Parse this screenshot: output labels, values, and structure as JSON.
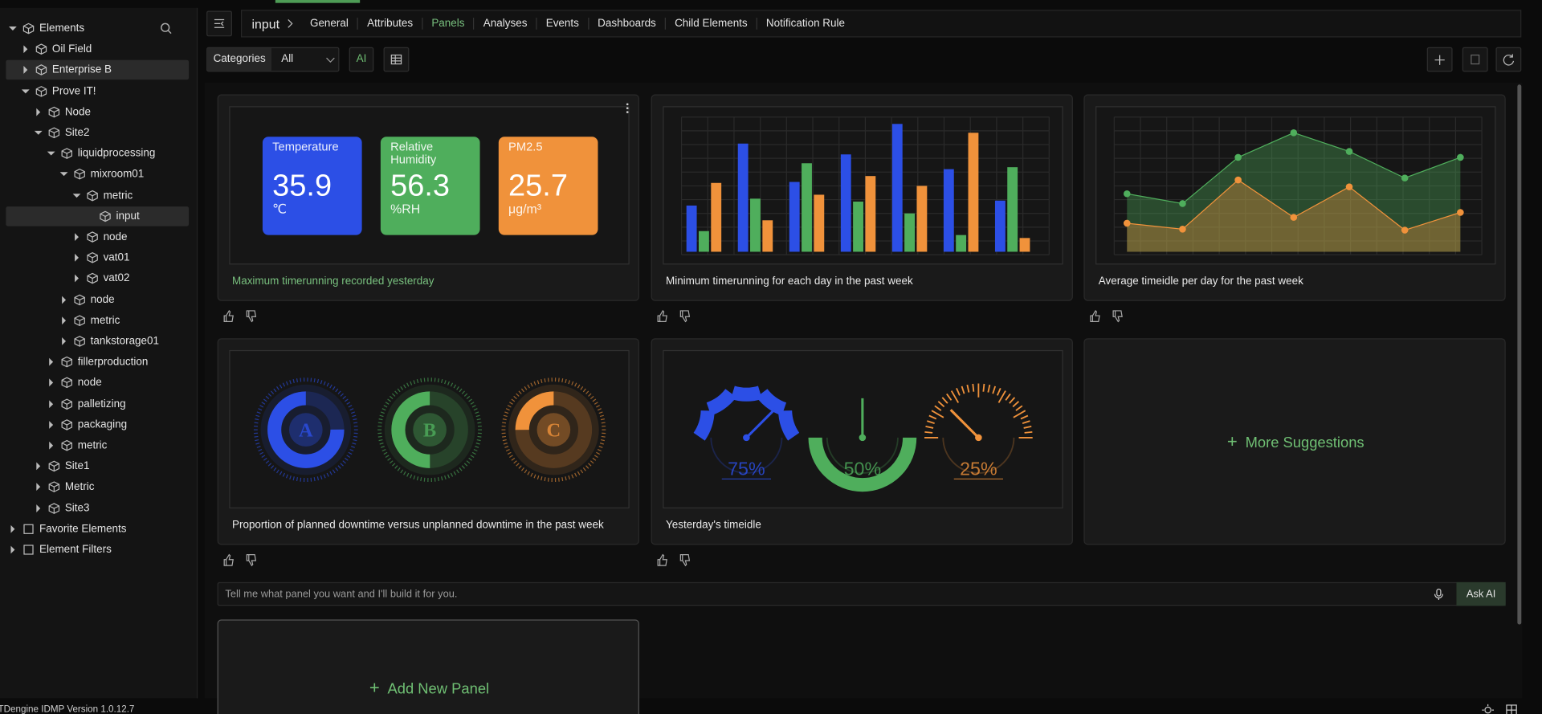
{
  "sidebar": {
    "items": [
      {
        "label": "Elements",
        "children": [
          {
            "label": "Oil Field",
            "children": []
          },
          {
            "label": "Enterprise B",
            "children": [],
            "highlighted": true
          },
          {
            "label": "Prove IT!",
            "children": [
              {
                "label": "Node",
                "children": []
              },
              {
                "label": "Site2",
                "children": [
                  {
                    "label": "liquidprocessing",
                    "children": [
                      {
                        "label": "mixroom01",
                        "children": [
                          {
                            "label": "metric",
                            "children": [
                              {
                                "label": "input",
                                "selected": true
                              }
                            ]
                          },
                          {
                            "label": "node",
                            "children": []
                          },
                          {
                            "label": "vat01",
                            "children": []
                          },
                          {
                            "label": "vat02",
                            "children": []
                          }
                        ]
                      },
                      {
                        "label": "node",
                        "children": []
                      },
                      {
                        "label": "metric",
                        "children": []
                      },
                      {
                        "label": "tankstorage01",
                        "children": []
                      }
                    ]
                  },
                  {
                    "label": "fillerproduction",
                    "children": []
                  },
                  {
                    "label": "node",
                    "children": []
                  },
                  {
                    "label": "palletizing",
                    "children": []
                  },
                  {
                    "label": "packaging",
                    "children": []
                  },
                  {
                    "label": "metric",
                    "children": []
                  }
                ]
              },
              {
                "label": "Site1",
                "children": []
              },
              {
                "label": "Metric",
                "children": []
              },
              {
                "label": "Site3",
                "children": []
              }
            ]
          }
        ]
      },
      {
        "label": "Favorite Elements",
        "children": []
      },
      {
        "label": "Element Filters",
        "children": []
      }
    ]
  },
  "breadcrumb": "input",
  "tabs": [
    "General",
    "Attributes",
    "Panels",
    "Analyses",
    "Events",
    "Dashboards",
    "Child Elements",
    "Notification Rule"
  ],
  "active_tab": 2,
  "toolbar": {
    "category_label": "Categories",
    "category_value": "All",
    "ai": "AI"
  },
  "panels": [
    {
      "caption": "Maximum timerunning recorded yesterday",
      "highlighted": true,
      "preview": {
        "type": "tiles",
        "tiles": [
          {
            "title": "Temperature",
            "value": 35.9,
            "unit": "℃",
            "color": "#2c4fe6"
          },
          {
            "title": "Relative Humidity",
            "value": 56.3,
            "unit": "%RH",
            "color": "#4fae5c"
          },
          {
            "title": "PM2.5",
            "value": 25.7,
            "unit": "μg/m³",
            "color": "#f0923b"
          }
        ]
      }
    },
    {
      "caption": "Minimum timerunning for each day in the past week",
      "preview": {
        "type": "bar",
        "ylim": [
          0,
          140
        ],
        "series": [
          {
            "color": "#2c4fe6",
            "values": [
              47,
              110,
              71,
              99,
              130,
              84,
              52
            ]
          },
          {
            "color": "#4fae5c",
            "values": [
              21,
              54,
              90,
              51,
              39,
              17,
              86
            ]
          },
          {
            "color": "#f0923b",
            "values": [
              70,
              32,
              58,
              77,
              67,
              121,
              14
            ]
          }
        ]
      }
    },
    {
      "caption": "Average timeidle per day for the past week",
      "preview": {
        "type": "area",
        "ylim": [
          0,
          140
        ],
        "series": [
          {
            "color": "#4fae5c",
            "values": [
              59,
              49,
              96,
              121,
              102,
              75,
              96
            ]
          },
          {
            "color": "#f0923b",
            "values": [
              29,
              23,
              73,
              35,
              66,
              22,
              40
            ]
          }
        ]
      }
    },
    {
      "caption": "Proportion of planned downtime versus unplanned downtime in the past week",
      "preview": {
        "type": "donut",
        "donuts": [
          {
            "letter": "A",
            "value": 75,
            "color": "#2c4fe6"
          },
          {
            "letter": "B",
            "value": 50,
            "color": "#4fae5c"
          },
          {
            "letter": "C",
            "value": 25,
            "color": "#f0923b"
          }
        ]
      }
    },
    {
      "caption": "Yesterday's timeidle",
      "preview": {
        "type": "gauge",
        "gauges": [
          {
            "value": 75,
            "label": "75%",
            "color": "#2c4fe6",
            "style": "segmented"
          },
          {
            "value": 50,
            "label": "50%",
            "color": "#4fae5c",
            "style": "solid"
          },
          {
            "value": 25,
            "label": "25%",
            "color": "#f0923b",
            "style": "ticks"
          }
        ]
      }
    }
  ],
  "more_suggestions": "More Suggestions",
  "ask": {
    "placeholder": "Tell me what panel you want and I'll build it for you.",
    "button": "Ask AI"
  },
  "add_panel": "Add New Panel",
  "footer": "TDengine IDMP Version 1.0.12.7"
}
